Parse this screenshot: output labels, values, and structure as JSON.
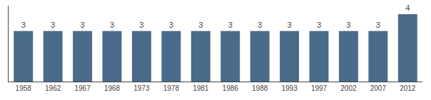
{
  "chart_data": {
    "type": "bar",
    "categories": [
      "1958",
      "1962",
      "1967",
      "1968",
      "1973",
      "1978",
      "1981",
      "1986",
      "1988",
      "1993",
      "1997",
      "2002",
      "2007",
      "2012"
    ],
    "values": [
      3,
      3,
      3,
      3,
      3,
      3,
      3,
      3,
      3,
      3,
      3,
      3,
      3,
      4
    ],
    "color": "#4a6b8a",
    "ylim": [
      0,
      4.5
    ],
    "data_labels": true,
    "tick_labels": "x",
    "grid": false
  }
}
